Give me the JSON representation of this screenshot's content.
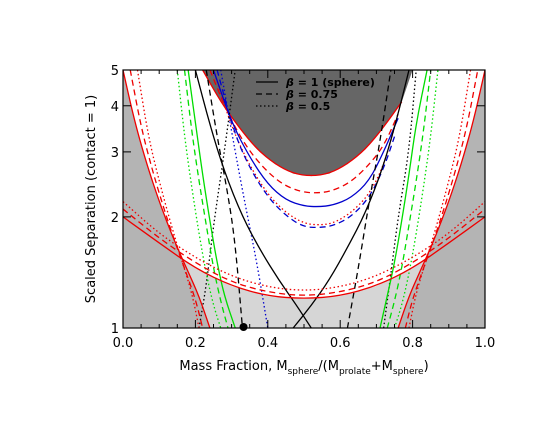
{
  "chart_data": {
    "type": "line",
    "title": "",
    "xlabel": {
      "main": "Mass Fraction, M",
      "sub1": "sphere",
      "mid": "/(M",
      "sub2": "prolate",
      "plus": "+M",
      "sub3": "sphere",
      "close": ")"
    },
    "ylabel": "Scaled Separation (contact = 1)",
    "xlim": [
      0.0,
      1.0
    ],
    "ylim": [
      1,
      5
    ],
    "yscale": "log",
    "x_ticks": [
      "0.0",
      "0.2",
      "0.4",
      "0.6",
      "0.8",
      "1.0"
    ],
    "y_ticks": [
      "1",
      "2",
      "3",
      "4",
      "5"
    ],
    "legend": {
      "position": "top-center",
      "entries": [
        {
          "symbol": "β",
          "label": " = 1 (sphere)",
          "dash": "solid"
        },
        {
          "symbol": "β",
          "label": " = 0.75",
          "dash": "dashed"
        },
        {
          "symbol": "β",
          "label": " = 0.5",
          "dash": "dotted"
        }
      ]
    },
    "colors": {
      "black": "#000000",
      "red": "#ee0000",
      "blue": "#0000cc",
      "green": "#00dd00",
      "dark_region": "#666666",
      "light_region": "#d6d6d6",
      "mid_region": "#b4b4b4"
    },
    "regions": [
      {
        "name": "dark-top",
        "x": [
          0.22,
          0.27,
          0.32,
          0.37,
          0.42,
          0.47,
          0.52,
          0.57,
          0.62,
          0.67,
          0.72,
          0.77
        ],
        "y": [
          5.0,
          4.1,
          3.5,
          3.05,
          2.78,
          2.62,
          2.58,
          2.62,
          2.78,
          3.05,
          3.5,
          4.1
        ]
      },
      {
        "name": "gray-left",
        "x": [
          0.0,
          0.0,
          0.03,
          0.06,
          0.09,
          0.12,
          0.15,
          0.18,
          0.21,
          0.24
        ],
        "y": [
          1.0,
          5.0,
          3.7,
          2.9,
          2.35,
          1.95,
          1.65,
          1.42,
          1.22,
          1.0
        ]
      },
      {
        "name": "gray-right",
        "x": [
          0.76,
          0.79,
          0.82,
          0.85,
          0.88,
          0.91,
          0.94,
          0.97,
          1.0,
          1.0
        ],
        "y": [
          1.0,
          1.22,
          1.42,
          1.65,
          1.95,
          2.35,
          2.9,
          3.7,
          5.0,
          1.0
        ]
      }
    ],
    "series": [
      {
        "color": "red",
        "dash": "solid",
        "x": [
          0.22,
          0.27,
          0.32,
          0.37,
          0.42,
          0.47,
          0.52,
          0.57,
          0.62,
          0.67,
          0.72,
          0.77
        ],
        "y": [
          5.0,
          4.1,
          3.5,
          3.05,
          2.78,
          2.62,
          2.58,
          2.62,
          2.78,
          3.05,
          3.5,
          4.1
        ]
      },
      {
        "color": "red",
        "dash": "dashed",
        "x": [
          0.24,
          0.29,
          0.34,
          0.39,
          0.44,
          0.49,
          0.53,
          0.57,
          0.62,
          0.67,
          0.72,
          0.76
        ],
        "y": [
          5.0,
          3.8,
          3.1,
          2.7,
          2.45,
          2.34,
          2.32,
          2.34,
          2.45,
          2.7,
          3.1,
          3.8
        ]
      },
      {
        "color": "red",
        "dash": "dotted",
        "x": [
          0.25,
          0.3,
          0.35,
          0.4,
          0.45,
          0.5,
          0.54,
          0.58,
          0.63,
          0.68,
          0.72,
          0.75
        ],
        "y": [
          5.0,
          3.5,
          2.75,
          2.3,
          2.05,
          1.92,
          1.9,
          1.92,
          2.05,
          2.3,
          2.75,
          3.5
        ]
      },
      {
        "color": "blue",
        "dash": "solid",
        "x": [
          0.25,
          0.3,
          0.35,
          0.4,
          0.45,
          0.5,
          0.54,
          0.58,
          0.63,
          0.68,
          0.72,
          0.76
        ],
        "y": [
          5.0,
          3.6,
          2.9,
          2.45,
          2.22,
          2.14,
          2.13,
          2.15,
          2.25,
          2.5,
          3.0,
          3.7
        ]
      },
      {
        "color": "blue",
        "dash": "dashed",
        "x": [
          0.26,
          0.31,
          0.36,
          0.41,
          0.46,
          0.5,
          0.54,
          0.58,
          0.63,
          0.68,
          0.72,
          0.75
        ],
        "y": [
          5.0,
          3.3,
          2.6,
          2.2,
          1.98,
          1.88,
          1.87,
          1.89,
          2.0,
          2.25,
          2.7,
          3.3
        ]
      },
      {
        "color": "blue",
        "dash": "dotted",
        "x": [
          0.27,
          0.31,
          0.34,
          0.37,
          0.4
        ],
        "y": [
          5.0,
          3.0,
          2.1,
          1.5,
          1.0
        ]
      },
      {
        "color": "black",
        "dash": "solid",
        "x": [
          0.2,
          0.24,
          0.28,
          0.33,
          0.38,
          0.43,
          0.48,
          0.52
        ],
        "y": [
          5.0,
          3.55,
          2.65,
          2.0,
          1.62,
          1.35,
          1.15,
          1.0
        ]
      },
      {
        "color": "black",
        "dash": "solid",
        "x": [
          0.47,
          0.52,
          0.57,
          0.62,
          0.67,
          0.72,
          0.76,
          0.79
        ],
        "y": [
          1.0,
          1.15,
          1.35,
          1.65,
          2.05,
          2.75,
          3.8,
          5.0
        ]
      },
      {
        "color": "black",
        "dash": "dashed",
        "x": [
          0.23,
          0.26,
          0.29,
          0.31,
          0.33
        ],
        "y": [
          5.0,
          3.3,
          2.3,
          1.7,
          1.0
        ]
      },
      {
        "color": "black",
        "dash": "dashed",
        "x": [
          0.62,
          0.65,
          0.68,
          0.71,
          0.74
        ],
        "y": [
          1.0,
          1.45,
          2.2,
          3.2,
          5.0
        ]
      },
      {
        "color": "black",
        "dash": "dotted",
        "x": [
          0.21,
          0.23,
          0.25,
          0.28,
          0.31
        ],
        "y": [
          1.0,
          1.3,
          1.9,
          3.0,
          5.0
        ]
      },
      {
        "color": "black",
        "dash": "dotted",
        "x": [
          0.72,
          0.74,
          0.76,
          0.79,
          0.81
        ],
        "y": [
          1.0,
          1.4,
          2.0,
          3.0,
          5.0
        ]
      },
      {
        "color": "green",
        "dash": "solid",
        "x": [
          0.18,
          0.2,
          0.22,
          0.24,
          0.26,
          0.28,
          0.31
        ],
        "y": [
          5.0,
          3.6,
          2.6,
          1.95,
          1.5,
          1.22,
          1.0
        ]
      },
      {
        "color": "green",
        "dash": "solid",
        "x": [
          0.71,
          0.73,
          0.75,
          0.77,
          0.79,
          0.81,
          0.84
        ],
        "y": [
          1.0,
          1.22,
          1.5,
          1.95,
          2.6,
          3.6,
          5.0
        ]
      },
      {
        "color": "green",
        "dash": "dashed",
        "x": [
          0.17,
          0.19,
          0.21,
          0.23,
          0.25,
          0.27,
          0.29
        ],
        "y": [
          5.0,
          3.4,
          2.5,
          1.9,
          1.45,
          1.18,
          1.0
        ]
      },
      {
        "color": "green",
        "dash": "dashed",
        "x": [
          0.73,
          0.75,
          0.77,
          0.79,
          0.81,
          0.83,
          0.85
        ],
        "y": [
          1.0,
          1.18,
          1.45,
          1.9,
          2.5,
          3.4,
          5.0
        ]
      },
      {
        "color": "green",
        "dash": "dotted",
        "x": [
          0.15,
          0.17,
          0.19,
          0.21,
          0.23,
          0.25,
          0.27
        ],
        "y": [
          5.0,
          3.3,
          2.4,
          1.8,
          1.4,
          1.15,
          1.0
        ]
      },
      {
        "color": "green",
        "dash": "dotted",
        "x": [
          0.75,
          0.77,
          0.79,
          0.81,
          0.83,
          0.85,
          0.87
        ],
        "y": [
          1.0,
          1.15,
          1.4,
          1.8,
          2.4,
          3.3,
          5.0
        ]
      },
      {
        "color": "red",
        "dash": "solid",
        "x": [
          0.0,
          0.03,
          0.06,
          0.09,
          0.12,
          0.15,
          0.18,
          0.21,
          0.24
        ],
        "y": [
          5.0,
          3.7,
          2.9,
          2.35,
          1.95,
          1.65,
          1.42,
          1.22,
          1.0
        ]
      },
      {
        "color": "red",
        "dash": "solid",
        "x": [
          0.76,
          0.79,
          0.82,
          0.85,
          0.88,
          0.91,
          0.94,
          0.97,
          1.0
        ],
        "y": [
          1.0,
          1.22,
          1.42,
          1.65,
          1.95,
          2.35,
          2.9,
          3.7,
          5.0
        ]
      },
      {
        "color": "red",
        "dash": "dashed",
        "x": [
          0.02,
          0.05,
          0.08,
          0.11,
          0.14,
          0.17,
          0.2,
          0.22
        ],
        "y": [
          5.0,
          3.5,
          2.7,
          2.15,
          1.75,
          1.45,
          1.2,
          1.0
        ]
      },
      {
        "color": "red",
        "dash": "dashed",
        "x": [
          0.78,
          0.8,
          0.83,
          0.86,
          0.89,
          0.92,
          0.95,
          0.98
        ],
        "y": [
          1.0,
          1.2,
          1.45,
          1.75,
          2.15,
          2.7,
          3.5,
          5.0
        ]
      },
      {
        "color": "red",
        "dash": "dotted",
        "x": [
          0.04,
          0.07,
          0.1,
          0.13,
          0.16,
          0.19,
          0.21
        ],
        "y": [
          5.0,
          3.3,
          2.5,
          1.95,
          1.55,
          1.25,
          1.0
        ]
      },
      {
        "color": "red",
        "dash": "dotted",
        "x": [
          0.79,
          0.81,
          0.84,
          0.87,
          0.9,
          0.93,
          0.96
        ],
        "y": [
          1.0,
          1.25,
          1.55,
          1.95,
          2.5,
          3.3,
          5.0
        ]
      },
      {
        "color": "red",
        "dash": "solid",
        "x": [
          0.0,
          0.1,
          0.2,
          0.3,
          0.4,
          0.5,
          0.6,
          0.7,
          0.8,
          0.9,
          1.0
        ],
        "y": [
          2.0,
          1.7,
          1.45,
          1.3,
          1.22,
          1.2,
          1.22,
          1.3,
          1.45,
          1.7,
          2.0
        ]
      },
      {
        "color": "red",
        "dash": "dashed",
        "x": [
          0.0,
          0.1,
          0.2,
          0.3,
          0.4,
          0.5,
          0.6,
          0.7,
          0.8,
          0.9,
          1.0
        ],
        "y": [
          2.1,
          1.75,
          1.5,
          1.33,
          1.25,
          1.22,
          1.25,
          1.33,
          1.5,
          1.75,
          2.1
        ]
      },
      {
        "color": "red",
        "dash": "dotted",
        "x": [
          0.0,
          0.1,
          0.2,
          0.3,
          0.4,
          0.5,
          0.6,
          0.7,
          0.8,
          0.9,
          1.0
        ],
        "y": [
          2.2,
          1.8,
          1.55,
          1.38,
          1.29,
          1.26,
          1.29,
          1.38,
          1.55,
          1.8,
          2.2
        ]
      }
    ],
    "markers": [
      {
        "name": "marker-dot",
        "x": 0.333,
        "y": 1.0,
        "color": "black"
      }
    ]
  }
}
